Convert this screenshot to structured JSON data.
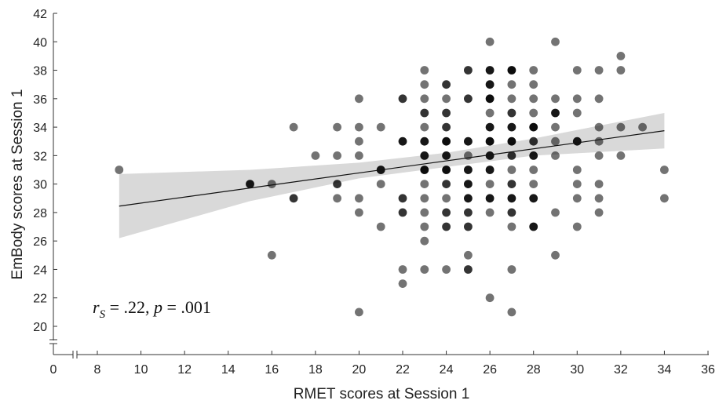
{
  "chart_data": {
    "type": "scatter",
    "xlabel": "RMET scores at Session 1",
    "ylabel": "EmBody scores at Session 1",
    "xlim": [
      0,
      36
    ],
    "ylim": [
      19,
      42
    ],
    "x_ticks": [
      "0",
      "8",
      "10",
      "12",
      "14",
      "16",
      "18",
      "20",
      "22",
      "24",
      "26",
      "28",
      "30",
      "32",
      "34",
      "36"
    ],
    "y_ticks": [
      "20",
      "22",
      "24",
      "26",
      "28",
      "30",
      "32",
      "34",
      "36",
      "38",
      "40",
      "42"
    ],
    "annotation": {
      "r_symbol": "r",
      "r_subscript": "S",
      "r_value": " = .22, ",
      "p_symbol": "p",
      "p_value": "  = .001"
    },
    "regression_line": {
      "x": [
        9,
        34
      ],
      "y": [
        28.45,
        33.75
      ]
    },
    "confidence_band": {
      "x": [
        9,
        15,
        20,
        24,
        28,
        34
      ],
      "upper": [
        30.7,
        31.0,
        31.5,
        32.2,
        33.2,
        35.0
      ],
      "lower": [
        26.2,
        28.8,
        30.4,
        31.2,
        32.0,
        32.5
      ]
    },
    "points": [
      {
        "x": 9,
        "y": 31,
        "n": 1
      },
      {
        "x": 15,
        "y": 30,
        "n": 3
      },
      {
        "x": 16,
        "y": 30,
        "n": 1
      },
      {
        "x": 16,
        "y": 25,
        "n": 1
      },
      {
        "x": 17,
        "y": 34,
        "n": 1
      },
      {
        "x": 17,
        "y": 29,
        "n": 2
      },
      {
        "x": 18,
        "y": 32,
        "n": 1
      },
      {
        "x": 19,
        "y": 34,
        "n": 1
      },
      {
        "x": 19,
        "y": 32,
        "n": 1
      },
      {
        "x": 19,
        "y": 30,
        "n": 2
      },
      {
        "x": 19,
        "y": 29,
        "n": 1
      },
      {
        "x": 20,
        "y": 36,
        "n": 1
      },
      {
        "x": 20,
        "y": 34,
        "n": 1
      },
      {
        "x": 20,
        "y": 33,
        "n": 1
      },
      {
        "x": 20,
        "y": 32,
        "n": 1
      },
      {
        "x": 20,
        "y": 29,
        "n": 1
      },
      {
        "x": 20,
        "y": 28,
        "n": 1
      },
      {
        "x": 20,
        "y": 21,
        "n": 1
      },
      {
        "x": 21,
        "y": 34,
        "n": 1
      },
      {
        "x": 21,
        "y": 31,
        "n": 3
      },
      {
        "x": 21,
        "y": 30,
        "n": 1
      },
      {
        "x": 21,
        "y": 27,
        "n": 1
      },
      {
        "x": 22,
        "y": 36,
        "n": 2
      },
      {
        "x": 22,
        "y": 33,
        "n": 3
      },
      {
        "x": 22,
        "y": 29,
        "n": 2
      },
      {
        "x": 22,
        "y": 28,
        "n": 2
      },
      {
        "x": 22,
        "y": 24,
        "n": 1
      },
      {
        "x": 22,
        "y": 23,
        "n": 1
      },
      {
        "x": 23,
        "y": 38,
        "n": 1
      },
      {
        "x": 23,
        "y": 37,
        "n": 1
      },
      {
        "x": 23,
        "y": 36,
        "n": 1
      },
      {
        "x": 23,
        "y": 35,
        "n": 2
      },
      {
        "x": 23,
        "y": 34,
        "n": 1
      },
      {
        "x": 23,
        "y": 33,
        "n": 3
      },
      {
        "x": 23,
        "y": 32,
        "n": 3
      },
      {
        "x": 23,
        "y": 31,
        "n": 4
      },
      {
        "x": 23,
        "y": 30,
        "n": 1
      },
      {
        "x": 23,
        "y": 29,
        "n": 1
      },
      {
        "x": 23,
        "y": 28,
        "n": 1
      },
      {
        "x": 23,
        "y": 27,
        "n": 1
      },
      {
        "x": 23,
        "y": 26,
        "n": 1
      },
      {
        "x": 23,
        "y": 24,
        "n": 1
      },
      {
        "x": 24,
        "y": 37,
        "n": 2
      },
      {
        "x": 24,
        "y": 36,
        "n": 1
      },
      {
        "x": 24,
        "y": 35,
        "n": 2
      },
      {
        "x": 24,
        "y": 34,
        "n": 2
      },
      {
        "x": 24,
        "y": 33,
        "n": 4
      },
      {
        "x": 24,
        "y": 32,
        "n": 3
      },
      {
        "x": 24,
        "y": 31,
        "n": 4
      },
      {
        "x": 24,
        "y": 30,
        "n": 2
      },
      {
        "x": 24,
        "y": 29,
        "n": 1
      },
      {
        "x": 24,
        "y": 28,
        "n": 2
      },
      {
        "x": 24,
        "y": 27,
        "n": 2
      },
      {
        "x": 24,
        "y": 24,
        "n": 1
      },
      {
        "x": 25,
        "y": 38,
        "n": 2
      },
      {
        "x": 25,
        "y": 36,
        "n": 2
      },
      {
        "x": 25,
        "y": 33,
        "n": 3
      },
      {
        "x": 25,
        "y": 32,
        "n": 1
      },
      {
        "x": 25,
        "y": 31,
        "n": 3
      },
      {
        "x": 25,
        "y": 30,
        "n": 3
      },
      {
        "x": 25,
        "y": 29,
        "n": 3
      },
      {
        "x": 25,
        "y": 28,
        "n": 2
      },
      {
        "x": 25,
        "y": 27,
        "n": 2
      },
      {
        "x": 25,
        "y": 25,
        "n": 1
      },
      {
        "x": 25,
        "y": 24,
        "n": 2
      },
      {
        "x": 26,
        "y": 40,
        "n": 1
      },
      {
        "x": 26,
        "y": 38,
        "n": 3
      },
      {
        "x": 26,
        "y": 37,
        "n": 3
      },
      {
        "x": 26,
        "y": 36,
        "n": 4
      },
      {
        "x": 26,
        "y": 35,
        "n": 1
      },
      {
        "x": 26,
        "y": 34,
        "n": 3
      },
      {
        "x": 26,
        "y": 33,
        "n": 4
      },
      {
        "x": 26,
        "y": 32,
        "n": 3
      },
      {
        "x": 26,
        "y": 31,
        "n": 3
      },
      {
        "x": 26,
        "y": 30,
        "n": 1
      },
      {
        "x": 26,
        "y": 29,
        "n": 3
      },
      {
        "x": 26,
        "y": 28,
        "n": 1
      },
      {
        "x": 26,
        "y": 22,
        "n": 1
      },
      {
        "x": 27,
        "y": 38,
        "n": 4
      },
      {
        "x": 27,
        "y": 37,
        "n": 1
      },
      {
        "x": 27,
        "y": 36,
        "n": 1
      },
      {
        "x": 27,
        "y": 35,
        "n": 2
      },
      {
        "x": 27,
        "y": 34,
        "n": 3
      },
      {
        "x": 27,
        "y": 33,
        "n": 5
      },
      {
        "x": 27,
        "y": 32,
        "n": 2
      },
      {
        "x": 27,
        "y": 31,
        "n": 1
      },
      {
        "x": 27,
        "y": 30,
        "n": 2
      },
      {
        "x": 27,
        "y": 29,
        "n": 3
      },
      {
        "x": 27,
        "y": 28,
        "n": 2
      },
      {
        "x": 27,
        "y": 27,
        "n": 1
      },
      {
        "x": 27,
        "y": 24,
        "n": 1
      },
      {
        "x": 27,
        "y": 21,
        "n": 1
      },
      {
        "x": 28,
        "y": 38,
        "n": 1
      },
      {
        "x": 28,
        "y": 37,
        "n": 1
      },
      {
        "x": 28,
        "y": 36,
        "n": 1
      },
      {
        "x": 28,
        "y": 35,
        "n": 1
      },
      {
        "x": 28,
        "y": 34,
        "n": 4
      },
      {
        "x": 28,
        "y": 33,
        "n": 2
      },
      {
        "x": 28,
        "y": 32,
        "n": 3
      },
      {
        "x": 28,
        "y": 31,
        "n": 1
      },
      {
        "x": 28,
        "y": 30,
        "n": 1
      },
      {
        "x": 28,
        "y": 29,
        "n": 3
      },
      {
        "x": 28,
        "y": 27,
        "n": 3
      },
      {
        "x": 29,
        "y": 40,
        "n": 1
      },
      {
        "x": 29,
        "y": 36,
        "n": 1
      },
      {
        "x": 29,
        "y": 35,
        "n": 3
      },
      {
        "x": 29,
        "y": 34,
        "n": 1
      },
      {
        "x": 29,
        "y": 33,
        "n": 1
      },
      {
        "x": 29,
        "y": 32,
        "n": 1
      },
      {
        "x": 29,
        "y": 28,
        "n": 1
      },
      {
        "x": 29,
        "y": 25,
        "n": 1
      },
      {
        "x": 30,
        "y": 38,
        "n": 1
      },
      {
        "x": 30,
        "y": 36,
        "n": 1
      },
      {
        "x": 30,
        "y": 35,
        "n": 1
      },
      {
        "x": 30,
        "y": 33,
        "n": 3
      },
      {
        "x": 30,
        "y": 31,
        "n": 1
      },
      {
        "x": 30,
        "y": 30,
        "n": 1
      },
      {
        "x": 30,
        "y": 29,
        "n": 1
      },
      {
        "x": 30,
        "y": 27,
        "n": 1
      },
      {
        "x": 31,
        "y": 38,
        "n": 1
      },
      {
        "x": 31,
        "y": 36,
        "n": 1
      },
      {
        "x": 31,
        "y": 34,
        "n": 1
      },
      {
        "x": 31,
        "y": 33,
        "n": 1
      },
      {
        "x": 31,
        "y": 32,
        "n": 1
      },
      {
        "x": 31,
        "y": 30,
        "n": 1
      },
      {
        "x": 31,
        "y": 29,
        "n": 1
      },
      {
        "x": 31,
        "y": 28,
        "n": 1
      },
      {
        "x": 32,
        "y": 39,
        "n": 1
      },
      {
        "x": 32,
        "y": 38,
        "n": 1
      },
      {
        "x": 32,
        "y": 34,
        "n": 1
      },
      {
        "x": 32,
        "y": 32,
        "n": 1
      },
      {
        "x": 33,
        "y": 34,
        "n": 1
      },
      {
        "x": 34,
        "y": 31,
        "n": 1
      },
      {
        "x": 34,
        "y": 29,
        "n": 1
      }
    ],
    "grid": false,
    "legend": "none",
    "point_color": "#999999",
    "line_color": "#111111",
    "band_color": "#d9d9d9"
  }
}
